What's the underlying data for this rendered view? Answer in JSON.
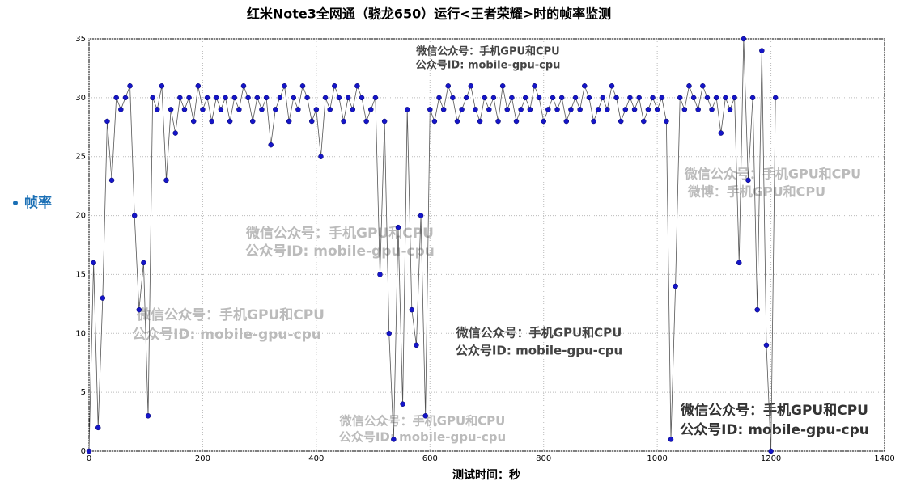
{
  "chart_data": {
    "type": "line",
    "title": "红米Note3全网通（骁龙650）运行<王者荣耀>时的帧率监测",
    "x_label": "测试时间：秒",
    "x": [
      0,
      8,
      16,
      24,
      32,
      40,
      48,
      56,
      64,
      72,
      80,
      88,
      96,
      104,
      112,
      120,
      128,
      136,
      144,
      152,
      160,
      168,
      176,
      184,
      192,
      200,
      208,
      216,
      224,
      232,
      240,
      248,
      256,
      264,
      272,
      280,
      288,
      296,
      304,
      312,
      320,
      328,
      336,
      344,
      352,
      360,
      368,
      376,
      384,
      392,
      400,
      408,
      416,
      424,
      432,
      440,
      448,
      456,
      464,
      472,
      480,
      488,
      496,
      504,
      512,
      520,
      528,
      536,
      544,
      552,
      560,
      568,
      576,
      584,
      592,
      600,
      608,
      616,
      624,
      632,
      640,
      648,
      656,
      664,
      672,
      680,
      688,
      696,
      704,
      712,
      720,
      728,
      736,
      744,
      752,
      760,
      768,
      776,
      784,
      792,
      800,
      808,
      816,
      824,
      832,
      840,
      848,
      856,
      864,
      872,
      880,
      888,
      896,
      904,
      912,
      920,
      928,
      936,
      944,
      952,
      960,
      968,
      976,
      984,
      992,
      1000,
      1008,
      1016,
      1024,
      1032,
      1040,
      1048,
      1056,
      1064,
      1072,
      1080,
      1088,
      1096,
      1104,
      1112,
      1120,
      1128,
      1136,
      1144,
      1152,
      1160,
      1168,
      1176,
      1184,
      1192,
      1200,
      1208
    ],
    "series": [
      {
        "name": "帧率",
        "color": "#1515c8",
        "values": [
          0,
          16,
          2,
          13,
          28,
          23,
          30,
          29,
          30,
          31,
          20,
          12,
          16,
          3,
          30,
          29,
          31,
          23,
          29,
          27,
          30,
          29,
          30,
          28,
          31,
          29,
          30,
          28,
          30,
          29,
          30,
          28,
          30,
          29,
          31,
          30,
          28,
          30,
          29,
          30,
          26,
          29,
          30,
          31,
          28,
          30,
          29,
          31,
          30,
          28,
          29,
          25,
          30,
          29,
          31,
          30,
          28,
          30,
          29,
          31,
          30,
          28,
          29,
          30,
          15,
          28,
          10,
          1,
          19,
          4,
          29,
          12,
          9,
          20,
          3,
          29,
          28,
          30,
          29,
          31,
          30,
          28,
          29,
          30,
          31,
          29,
          28,
          30,
          29,
          30,
          28,
          31,
          29,
          30,
          28,
          29,
          30,
          29,
          31,
          30,
          28,
          29,
          30,
          29,
          30,
          28,
          29,
          30,
          29,
          31,
          30,
          28,
          29,
          30,
          29,
          31,
          30,
          28,
          29,
          30,
          29,
          30,
          28,
          29,
          30,
          29,
          30,
          28,
          1,
          14,
          30,
          29,
          31,
          30,
          29,
          31,
          30,
          29,
          30,
          27,
          30,
          29,
          30,
          16,
          35,
          23,
          30,
          12,
          34,
          9,
          0,
          30
        ]
      }
    ],
    "xlim": [
      0,
      1400
    ],
    "xticks": [
      0,
      200,
      400,
      600,
      800,
      1000,
      1200,
      1400
    ],
    "ylim": [
      0,
      35
    ],
    "yticks": [
      0,
      5,
      10,
      15,
      20,
      25,
      30,
      35
    ],
    "grid": true,
    "legend": "left",
    "annotations": [
      "微信公众号：手机GPU和CPU",
      "公众号ID: mobile-gpu-cpu",
      "微信公众号：手机GPU和CPU",
      "微博：手机GPU和CPU",
      "微信公众号：手机GPU和CPU",
      "公众号ID: mobile-gpu-cpu",
      "微信公众号：手机GPU和CPU",
      "公众号ID: mobile-gpu-cpu",
      "微信公众号：手机GPU和CPU",
      "公众号ID: mobile-gpu-cpu",
      "微信公众号：手机GPU和CPU",
      "公众号ID: mobile-gpu-cpu",
      "微信公众号：手机GPU和CPU",
      "公众号ID: mobile-gpu-cpu"
    ]
  }
}
